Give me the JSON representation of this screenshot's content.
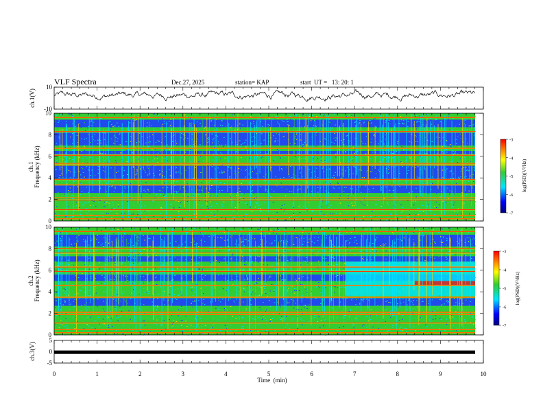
{
  "header": {
    "title": "VLF Spectra",
    "date": "Dec.27, 2025",
    "station": "station= KAP",
    "start_ut": "start  UT =   13: 20: 1"
  },
  "chart_data": [
    {
      "type": "line",
      "name": "ch1-waveform",
      "ylabel": "ch.1(V)",
      "ylim": [
        -10,
        10
      ],
      "yticks": [
        "10",
        "-10"
      ],
      "xlim": [
        0,
        10
      ],
      "description_mean_v": 2.5
    },
    {
      "type": "heatmap",
      "name": "ch1-spectrogram",
      "ylabel_top": "ch.1",
      "ylabel": "Frequency (kHz)",
      "ylim": [
        0,
        10
      ],
      "yticks": [
        "0",
        "2",
        "4",
        "6",
        "8",
        "10"
      ],
      "xlim": [
        0,
        10
      ],
      "zlim": [
        -7,
        -3
      ],
      "quiet_bands_khz": [
        [
          2.6,
          3.3
        ],
        [
          3.9,
          5.1
        ],
        [
          6.2,
          6.5
        ],
        [
          7.0,
          8.2
        ],
        [
          8.7,
          9.4
        ]
      ],
      "strong_lines_khz": [
        0.2,
        0.5,
        1.05,
        1.95,
        2.15,
        3.35,
        3.85,
        5.2,
        5.35,
        6.1,
        6.75,
        8.3,
        9.6
      ]
    },
    {
      "type": "heatmap",
      "name": "ch2-spectrogram",
      "ylabel_top": "ch.2",
      "ylabel": "Frequency (kHz)",
      "ylim": [
        0,
        10
      ],
      "yticks": [
        "0",
        "2",
        "4",
        "6",
        "8",
        "10"
      ],
      "xlim": [
        0,
        10
      ],
      "zlim": [
        -7,
        -3
      ],
      "quiet_bands_khz": [
        [
          2.7,
          3.4
        ],
        [
          5.0,
          5.6
        ],
        [
          6.8,
          7.3
        ],
        [
          8.2,
          9.3
        ]
      ],
      "strong_lines_khz": [
        0.2,
        0.5,
        1.1,
        1.9,
        2.1,
        3.5,
        4.6,
        5.9,
        6.3,
        7.6,
        8.0,
        9.6
      ],
      "broadband_after_min": 6.8
    },
    {
      "type": "line",
      "name": "ch3-waveform",
      "ylabel": "ch.3(V)",
      "ylim": [
        -5,
        5
      ],
      "yticks": [
        "5",
        "0",
        "-5"
      ],
      "xlim": [
        0,
        10
      ],
      "value_v": -0.2
    }
  ],
  "xaxis": {
    "label": "Time  (min)",
    "ticks": [
      "0",
      "1",
      "2",
      "3",
      "4",
      "5",
      "6",
      "7",
      "8",
      "9",
      "10"
    ]
  },
  "colorbars": [
    {
      "label": "log(PSD)(V²/Hz)",
      "ticks": [
        "-3",
        "-4",
        "-5",
        "-6",
        "-7"
      ]
    },
    {
      "label": "log(PSD)(V²/Hz)",
      "ticks": [
        "-3",
        "-4",
        "-5",
        "-6",
        "-7"
      ]
    }
  ],
  "colors": {
    "strong": "#ff0000",
    "high": "#ffd700",
    "mid": "#32cd32",
    "low": "#00e5ff",
    "quiet": "#1e3cff",
    "axis": "#000000"
  }
}
